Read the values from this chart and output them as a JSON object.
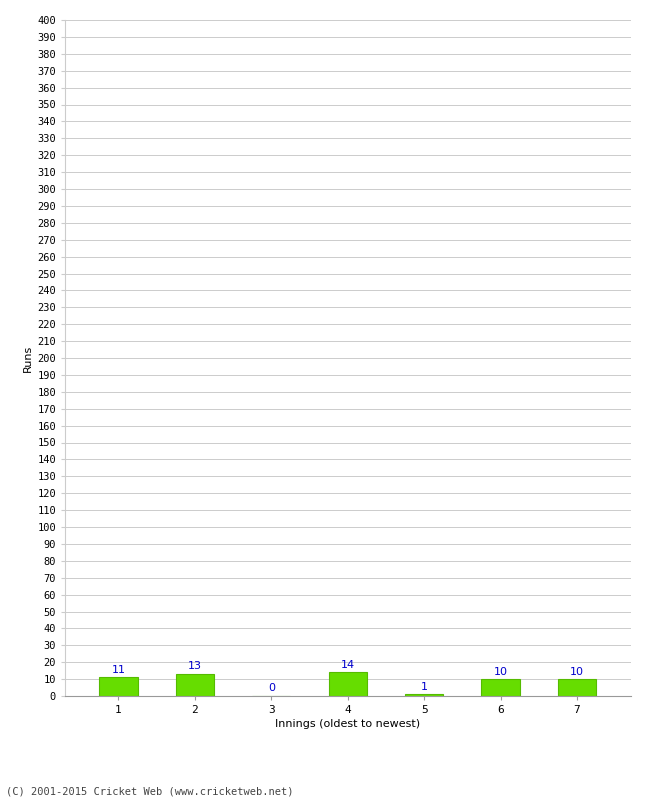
{
  "categories": [
    "1",
    "2",
    "3",
    "4",
    "5",
    "6",
    "7"
  ],
  "values": [
    11,
    13,
    0,
    14,
    1,
    10,
    10
  ],
  "bar_color": "#66dd00",
  "bar_edge_color": "#55bb00",
  "value_label_color": "#0000cc",
  "xlabel": "Innings (oldest to newest)",
  "ylabel": "Runs",
  "ylim": [
    0,
    400
  ],
  "ytick_step": 10,
  "footer": "(C) 2001-2015 Cricket Web (www.cricketweb.net)",
  "background_color": "#ffffff",
  "grid_color": "#cccccc"
}
